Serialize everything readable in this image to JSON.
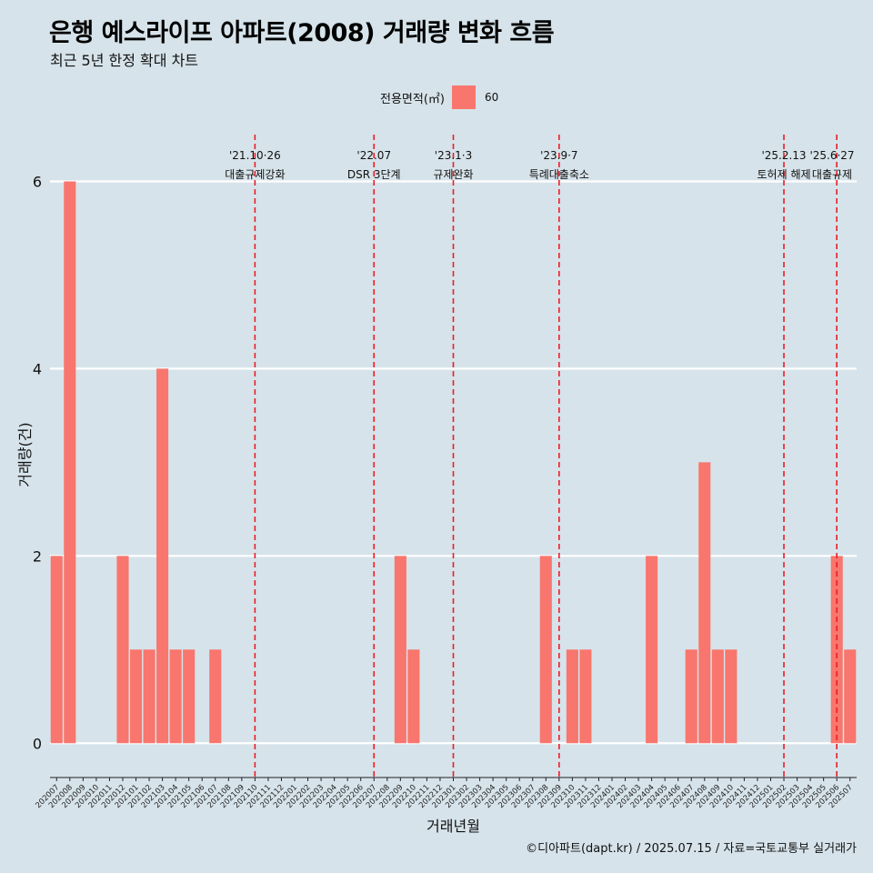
{
  "title": "은행 예스라이프 아파트(2008) 거래량 변화 흐름",
  "subtitle": "최근 5년 한정 확대 차트",
  "legend": {
    "title": "전용면적(㎡)",
    "label": "60",
    "color": "#f8766d"
  },
  "caption": "©디아파트(dapt.kr) / 2025.07.15 / 자료=국토교통부 실거래가",
  "chart_data": {
    "type": "bar",
    "title": "은행 예스라이프 아파트(2008) 거래량 변화 흐름",
    "subtitle": "최근 5년 한정 확대 차트",
    "xlabel": "거래년월",
    "ylabel": "거래량(건)",
    "ylim": [
      -0.25,
      6.5
    ],
    "yticks": [
      0,
      2,
      4,
      6
    ],
    "grid": true,
    "legend_position": "top",
    "categories": [
      "202007",
      "202008",
      "202009",
      "202010",
      "202011",
      "202012",
      "202101",
      "202102",
      "202103",
      "202104",
      "202105",
      "202106",
      "202107",
      "202108",
      "202109",
      "202110",
      "202111",
      "202112",
      "202201",
      "202202",
      "202203",
      "202204",
      "202205",
      "202206",
      "202207",
      "202208",
      "202209",
      "202210",
      "202211",
      "202212",
      "202301",
      "202302",
      "202303",
      "202304",
      "202305",
      "202306",
      "202307",
      "202308",
      "202309",
      "202310",
      "202311",
      "202312",
      "202401",
      "202402",
      "202403",
      "202404",
      "202405",
      "202406",
      "202407",
      "202408",
      "202409",
      "202410",
      "202411",
      "202412",
      "202501",
      "202502",
      "202503",
      "202504",
      "202505",
      "202506",
      "202507"
    ],
    "series": [
      {
        "name": "60",
        "color": "#f8766d",
        "values": [
          2,
          6,
          0,
          0,
          0,
          2,
          1,
          1,
          4,
          1,
          1,
          0,
          1,
          0,
          0,
          0,
          0,
          0,
          0,
          0,
          0,
          0,
          0,
          0,
          0,
          0,
          2,
          1,
          0,
          0,
          0,
          0,
          0,
          0,
          0,
          0,
          0,
          2,
          0,
          1,
          1,
          0,
          0,
          0,
          0,
          2,
          0,
          0,
          1,
          3,
          1,
          1,
          0,
          0,
          0,
          0,
          0,
          0,
          0,
          2,
          1
        ]
      }
    ],
    "annotations": [
      {
        "date": "202110",
        "line1": "'21.10·26",
        "line2": "대출규제강화"
      },
      {
        "date": "202207",
        "line1": "'22.07",
        "line2": "DSR 3단계"
      },
      {
        "date": "202301",
        "line1": "'23.1·3",
        "line2": "규제완화"
      },
      {
        "date": "202309",
        "line1": "'23.9·7",
        "line2": "특례대출축소"
      },
      {
        "date": "202502",
        "line1": "'25.2.13",
        "line2": "토허제 해제"
      },
      {
        "date": "202506",
        "line1": "'25.6·27",
        "line2": "대출규제"
      }
    ]
  }
}
